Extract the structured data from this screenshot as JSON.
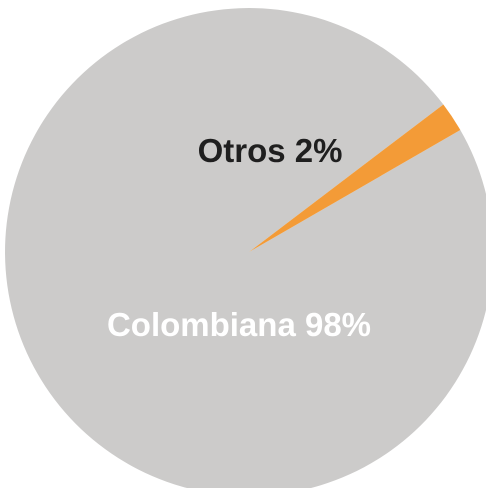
{
  "chart_data": {
    "type": "pie",
    "title": "",
    "slices": [
      {
        "label": "Colombiana 98%",
        "category": "Colombiana",
        "value": 98,
        "color": "#cccbca",
        "label_color": "#ffffff"
      },
      {
        "label": "Otros 2%",
        "category": "Otros",
        "value": 2,
        "color": "#f39b37",
        "label_color": "#1f1f1f"
      }
    ],
    "start_angle_deg": -30,
    "direction": "clockwise",
    "legend": "none"
  }
}
